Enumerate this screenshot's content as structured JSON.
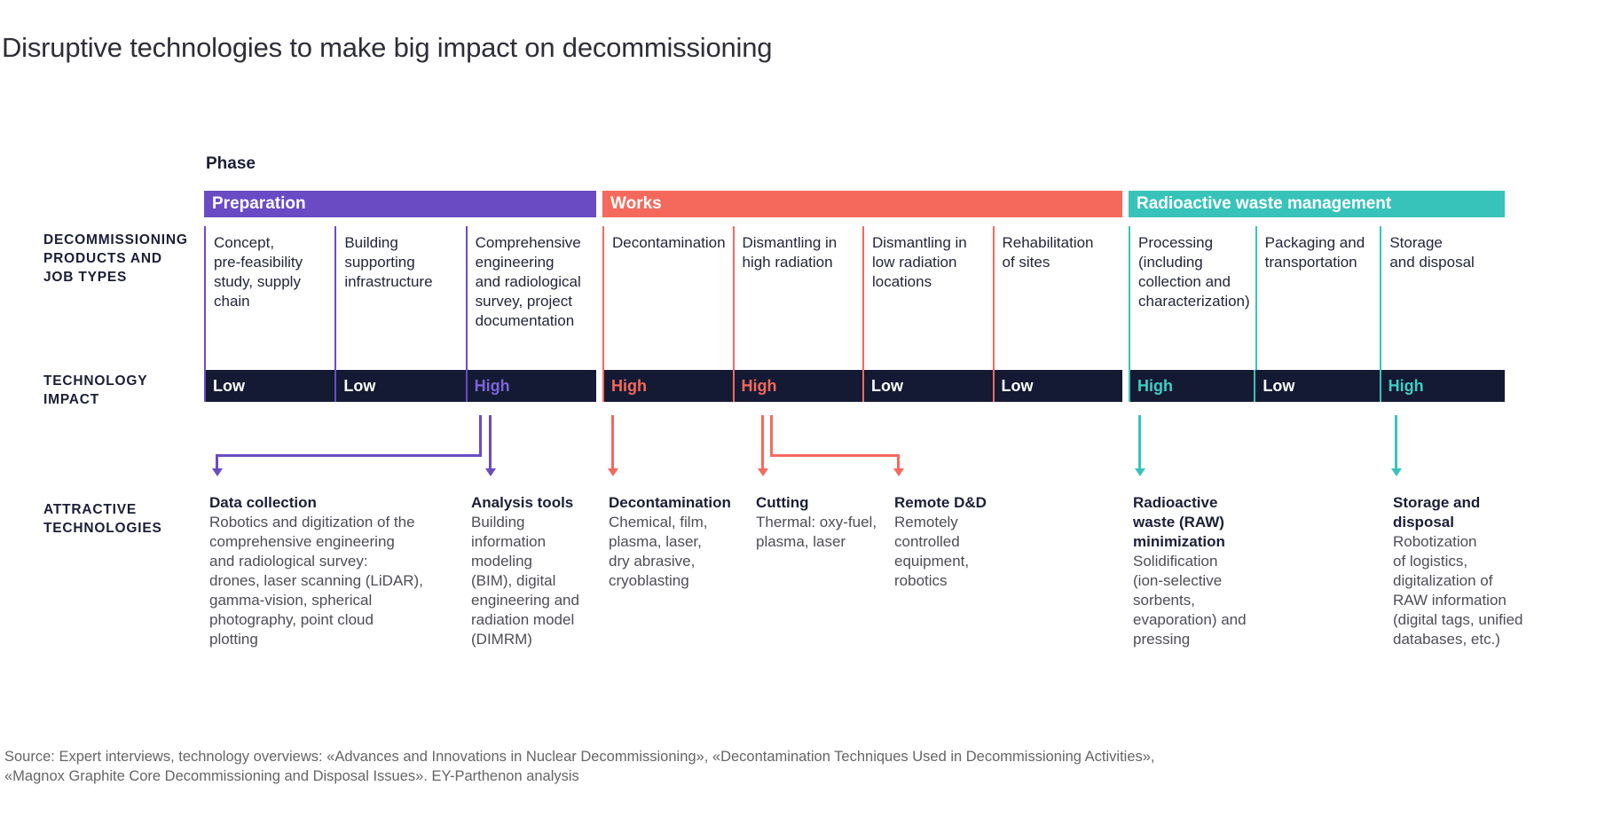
{
  "title": "Disruptive technologies to make big impact on decommissioning",
  "phase_label": "Phase",
  "row_labels": {
    "products": "DECOMMISSIONING\nPRODUCTS AND\nJOB TYPES",
    "impact": "TECHNOLOGY\nIMPACT",
    "technologies": "ATTRACTIVE\nTECHNOLOGIES"
  },
  "colors": {
    "preparation_accent": "#6a4bc4",
    "preparation_high_text": "#7d64d9",
    "works_accent": "#f5695d",
    "raw_accent": "#38c3ba",
    "impact_bar_background": "#141a33",
    "heading_text": "#1a1f36",
    "body_text": "#4d4d55",
    "source_text": "#656565"
  },
  "phases": [
    {
      "key": "preparation",
      "name": "Preparation",
      "columns": [
        {
          "job": "Concept,\npre-feasibility\nstudy, supply\nchain",
          "impact": "Low"
        },
        {
          "job": "Building\nsupporting\ninfrastructure",
          "impact": "Low"
        },
        {
          "job": "Comprehensive\nengineering\nand radiological\nsurvey, project\ndocumentation",
          "impact": "High"
        }
      ]
    },
    {
      "key": "works",
      "name": "Works",
      "columns": [
        {
          "job": "Decontamination",
          "impact": "High"
        },
        {
          "job": "Dismantling in\nhigh radiation",
          "impact": "High"
        },
        {
          "job": "Dismantling in\nlow radiation\nlocations",
          "impact": "Low"
        },
        {
          "job": "Rehabilitation\nof sites",
          "impact": "Low"
        }
      ]
    },
    {
      "key": "raw",
      "name": "Radioactive waste management",
      "columns": [
        {
          "job": "Processing\n(including\ncollection and\ncharacterization)",
          "impact": "High"
        },
        {
          "job": "Packaging and\ntransportation",
          "impact": "Low"
        },
        {
          "job": "Storage\nand disposal",
          "impact": "High"
        }
      ]
    }
  ],
  "technologies": [
    {
      "title": "Data collection",
      "body": "Robotics and digitization of the\ncomprehensive engineering\nand radiological survey:\ndrones, laser scanning (LiDAR),\ngamma-vision, spherical\nphotography, point cloud\nplotting"
    },
    {
      "title": "Analysis tools",
      "body": "Building\ninformation\nmodeling\n(BIM), digital\nengineering and\nradiation model\n(DIMRM)"
    },
    {
      "title": "Decontamination",
      "body": "Chemical, film,\nplasma, laser,\ndry abrasive,\ncryoblasting"
    },
    {
      "title": "Cutting",
      "body": "Thermal: oxy-fuel,\nplasma, laser"
    },
    {
      "title": "Remote D&D",
      "body": "Remotely\ncontrolled\nequipment,\nrobotics"
    },
    {
      "title": "Radioactive\nwaste (RAW)\nminimization",
      "body": "Solidification\n(ion-selective\nsorbents,\nevaporation) and\npressing"
    },
    {
      "title": "Storage and\ndisposal",
      "body": "Robotization\nof logistics,\ndigitalization of\nRAW information\n(digital tags, unified\ndatabases, etc.)"
    }
  ],
  "source": "Source: Expert interviews, technology overviews: «Advances and Innovations in Nuclear Decommissioning», «Decontamination Techniques Used in Decommissioning Activities»,\n«Magnox Graphite Core Decommissioning and Disposal Issues». EY-Parthenon analysis"
}
